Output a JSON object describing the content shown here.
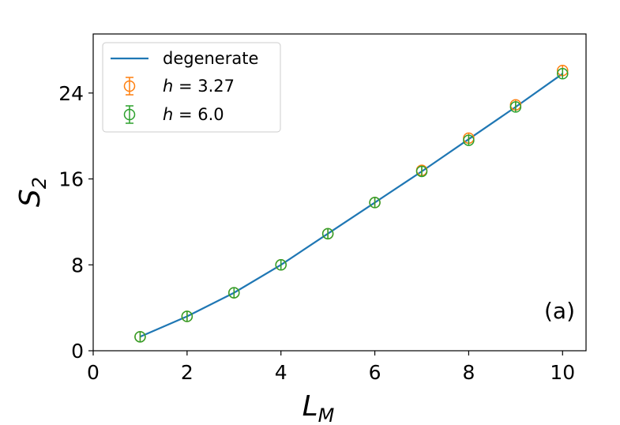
{
  "chart_data": {
    "type": "line",
    "xlabel": {
      "base": "L",
      "sub": "M"
    },
    "ylabel": {
      "base": "S",
      "sub": "2"
    },
    "xlim": [
      0,
      10.5
    ],
    "ylim": [
      0,
      29.5
    ],
    "xticks": [
      0,
      2,
      4,
      6,
      8,
      10
    ],
    "xtick_labels": [
      "0",
      "2",
      "4",
      "6",
      "8",
      "10"
    ],
    "yticks": [
      0,
      8,
      16,
      24
    ],
    "ytick_labels": [
      "0",
      "8",
      "16",
      "24"
    ],
    "grid": false,
    "legend_position": "top-left",
    "annotation": "(a)",
    "series": [
      {
        "name": "degenerate",
        "kind": "line",
        "color": "#1f77b4",
        "x": [
          1,
          2,
          3,
          4,
          5,
          6,
          7,
          8,
          9,
          10
        ],
        "y": [
          1.3,
          3.2,
          5.4,
          8.0,
          10.9,
          13.8,
          16.7,
          19.7,
          22.7,
          25.8
        ]
      },
      {
        "name": "h = 3.27",
        "legend_math": {
          "var": "h",
          "eq": " = 3.27"
        },
        "kind": "errorbar",
        "color": "#ff7f0e",
        "x": [
          1,
          2,
          3,
          4,
          5,
          6,
          7,
          8,
          9,
          10
        ],
        "y": [
          1.3,
          3.2,
          5.4,
          8.0,
          10.9,
          13.8,
          16.8,
          19.8,
          22.9,
          26.1
        ]
      },
      {
        "name": "h = 6.0",
        "legend_math": {
          "var": "h",
          "eq": " = 6.0"
        },
        "kind": "errorbar",
        "color": "#2ca02c",
        "x": [
          1,
          2,
          3,
          4,
          5,
          6,
          7,
          8,
          9,
          10
        ],
        "y": [
          1.3,
          3.2,
          5.4,
          8.0,
          10.9,
          13.8,
          16.7,
          19.6,
          22.7,
          25.8
        ]
      }
    ]
  }
}
